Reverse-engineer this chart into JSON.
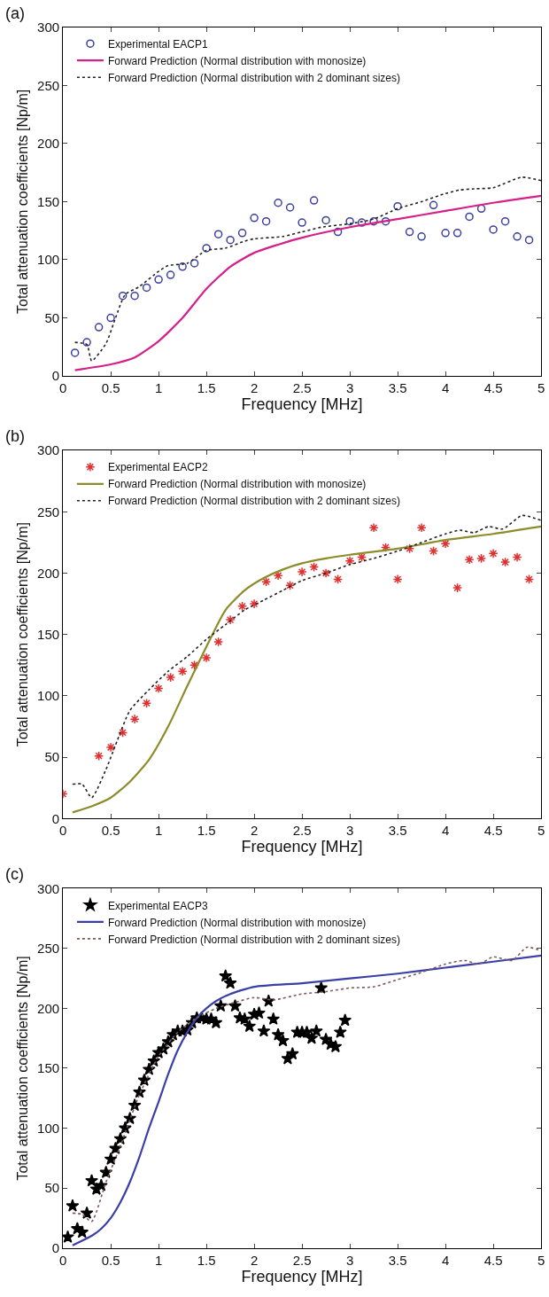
{
  "chart_data": [
    {
      "type": "scatter",
      "title": "(a)",
      "xlabel": "Frequency [MHz]",
      "ylabel": "Total attenuation coefficients [Np/m]",
      "xlim": [
        0,
        5
      ],
      "ylim": [
        0,
        300
      ],
      "xticks": [
        0,
        0.5,
        1,
        1.5,
        2,
        2.5,
        3,
        3.5,
        4,
        4.5,
        5
      ],
      "yticks": [
        0,
        50,
        100,
        150,
        200,
        250,
        300
      ],
      "legend": "top left",
      "series": [
        {
          "name": "Experimental EACP1",
          "marker": "circle",
          "color": "#3b3fa0",
          "x": [
            0.125,
            0.25,
            0.375,
            0.5,
            0.625,
            0.75,
            0.875,
            1,
            1.125,
            1.25,
            1.375,
            1.5,
            1.625,
            1.75,
            1.875,
            2,
            2.125,
            2.25,
            2.375,
            2.5,
            2.625,
            2.75,
            2.875,
            3,
            3.125,
            3.25,
            3.375,
            3.5,
            3.625,
            3.75,
            3.875,
            4,
            4.125,
            4.25,
            4.375,
            4.5,
            4.625,
            4.75,
            4.875
          ],
          "values": [
            20,
            29,
            42,
            50,
            69,
            69,
            76,
            83,
            87,
            94,
            97,
            110,
            122,
            117,
            123,
            136,
            133,
            149,
            145,
            132,
            151,
            134,
            124,
            133,
            132,
            133,
            133,
            146,
            124,
            120,
            147,
            123,
            123,
            137,
            144,
            126,
            133,
            120,
            117
          ]
        },
        {
          "name": "Forward Prediction (Normal distribution with monosize)",
          "type": "line",
          "line_style": "solid",
          "color": "#d4208a",
          "x": [
            0.125,
            0.5,
            0.75,
            1,
            1.25,
            1.5,
            1.75,
            2,
            2.25,
            2.5,
            3,
            3.5,
            4,
            4.5,
            5
          ],
          "values": [
            5,
            10,
            16,
            30,
            50,
            75,
            94,
            106,
            113,
            119,
            128,
            135,
            142,
            149,
            155
          ]
        },
        {
          "name": "Forward Prediction (Normal distribution with 2 dominant sizes)",
          "type": "line",
          "line_style": "dotted",
          "color": "#222222",
          "x": [
            0.125,
            0.25,
            0.3,
            0.45,
            0.55,
            0.65,
            0.8,
            1,
            1.1,
            1.3,
            1.5,
            1.7,
            1.9,
            2,
            2.3,
            2.5,
            2.7,
            3,
            3.25,
            3.5,
            3.75,
            4,
            4.15,
            4.3,
            4.5,
            4.8,
            5
          ],
          "values": [
            29,
            27,
            13,
            28,
            50,
            70,
            77,
            90,
            95,
            97,
            108,
            110,
            116,
            118,
            120,
            124,
            128,
            131,
            135,
            144,
            150,
            157,
            160,
            161,
            162,
            171,
            168
          ]
        }
      ]
    },
    {
      "type": "scatter",
      "title": "(b)",
      "xlabel": "Frequency [MHz]",
      "ylabel": "Total attenuation coefficients [Np/m]",
      "xlim": [
        0,
        5
      ],
      "ylim": [
        0,
        300
      ],
      "xticks": [
        0,
        0.5,
        1,
        1.5,
        2,
        2.5,
        3,
        3.5,
        4,
        4.5,
        5
      ],
      "yticks": [
        0,
        50,
        100,
        150,
        200,
        250,
        300
      ],
      "legend": "top left",
      "series": [
        {
          "name": "Experimental EACP2",
          "marker": "cross",
          "color": "#e03030",
          "x": [
            0,
            0.375,
            0.5,
            0.625,
            0.75,
            0.875,
            1,
            1.125,
            1.25,
            1.375,
            1.5,
            1.625,
            1.75,
            1.875,
            2,
            2.125,
            2.25,
            2.375,
            2.5,
            2.625,
            2.75,
            2.875,
            3,
            3.125,
            3.25,
            3.375,
            3.5,
            3.625,
            3.75,
            3.875,
            4,
            4.125,
            4.25,
            4.375,
            4.5,
            4.625,
            4.75,
            4.875
          ],
          "values": [
            20,
            51,
            58,
            70,
            81,
            94,
            106,
            115,
            120,
            125,
            131,
            144,
            162,
            173,
            175,
            193,
            198,
            190,
            201,
            205,
            200,
            195,
            210,
            213,
            237,
            221,
            195,
            220,
            237,
            218,
            224,
            188,
            211,
            212,
            216,
            209,
            213,
            195
          ]
        },
        {
          "name": "Forward Prediction (Normal distribution with monosize)",
          "type": "line",
          "line_style": "solid",
          "color": "#8c8c2a",
          "x": [
            0.1,
            0.3,
            0.5,
            0.7,
            0.9,
            1.1,
            1.3,
            1.5,
            1.7,
            1.9,
            2.1,
            2.3,
            2.5,
            2.75,
            3,
            3.5,
            4,
            4.5,
            5
          ],
          "values": [
            5,
            10,
            17,
            30,
            48,
            75,
            108,
            140,
            170,
            186,
            196,
            203,
            208,
            212,
            215,
            220,
            227,
            232,
            238
          ]
        },
        {
          "name": "Forward Prediction (Normal distribution with 2 dominant sizes)",
          "type": "line",
          "line_style": "dotted",
          "color": "#222222",
          "x": [
            0.1,
            0.2,
            0.3,
            0.45,
            0.55,
            0.7,
            0.9,
            1.1,
            1.3,
            1.5,
            1.7,
            1.9,
            2.1,
            2.3,
            2.5,
            2.75,
            3,
            3.25,
            3.5,
            3.75,
            4,
            4.15,
            4.3,
            4.45,
            4.6,
            4.8,
            5
          ],
          "values": [
            28,
            28,
            17,
            40,
            60,
            88,
            105,
            120,
            132,
            146,
            158,
            170,
            178,
            186,
            194,
            200,
            207,
            212,
            218,
            225,
            232,
            235,
            233,
            238,
            236,
            247,
            243
          ]
        }
      ]
    },
    {
      "type": "scatter",
      "title": "(c)",
      "xlabel": "Frequency [MHz]",
      "ylabel": "Total attenuation coefficients [Np/m]",
      "xlim": [
        0,
        5
      ],
      "ylim": [
        0,
        300
      ],
      "xticks": [
        0,
        0.5,
        1,
        1.5,
        2,
        2.5,
        3,
        3.5,
        4,
        4.5,
        5
      ],
      "yticks": [
        0,
        50,
        100,
        150,
        200,
        250,
        300
      ],
      "legend": "top left",
      "series": [
        {
          "name": "Experimental EACP3",
          "marker": "star",
          "color": "#000000",
          "x": [
            0.05,
            0.1,
            0.15,
            0.2,
            0.25,
            0.3,
            0.35,
            0.4,
            0.45,
            0.5,
            0.55,
            0.6,
            0.65,
            0.7,
            0.75,
            0.8,
            0.85,
            0.9,
            0.95,
            1.0,
            1.05,
            1.1,
            1.15,
            1.2,
            1.25,
            1.3,
            1.35,
            1.4,
            1.45,
            1.5,
            1.55,
            1.6,
            1.65,
            1.7,
            1.75,
            1.8,
            1.85,
            1.9,
            1.95,
            2.0,
            2.05,
            2.1,
            2.15,
            2.2,
            2.25,
            2.3,
            2.35,
            2.4,
            2.45,
            2.5,
            2.55,
            2.6,
            2.65,
            2.7,
            2.75,
            2.8,
            2.85,
            2.9,
            2.95
          ],
          "values": [
            9,
            35,
            16,
            13,
            29,
            56,
            49,
            52,
            63,
            74,
            83,
            91,
            100,
            108,
            119,
            130,
            140,
            149,
            156,
            163,
            166,
            172,
            178,
            181,
            181,
            182,
            188,
            192,
            192,
            191,
            191,
            188,
            202,
            227,
            221,
            202,
            192,
            191,
            185,
            195,
            196,
            181,
            206,
            191,
            178,
            173,
            158,
            162,
            180,
            180,
            180,
            175,
            181,
            217,
            174,
            170,
            168,
            180,
            190
          ]
        },
        {
          "name": "Forward Prediction (Normal distribution with monosize)",
          "type": "line",
          "line_style": "solid",
          "color": "#3a3fa8",
          "x": [
            0.1,
            0.2,
            0.3,
            0.4,
            0.5,
            0.6,
            0.7,
            0.8,
            0.9,
            1.0,
            1.1,
            1.2,
            1.3,
            1.4,
            1.5,
            1.6,
            1.75,
            2,
            2.5,
            3,
            3.5,
            4,
            4.5,
            5
          ],
          "values": [
            2,
            6,
            10,
            16,
            25,
            38,
            55,
            76,
            100,
            122,
            145,
            165,
            180,
            192,
            200,
            206,
            212,
            218,
            221,
            225,
            229,
            234,
            239,
            244
          ]
        },
        {
          "name": "Forward Prediction (Normal distribution with 2 dominant sizes)",
          "type": "line",
          "line_style": "dotted",
          "color": "#7a5a5a",
          "x": [
            0.1,
            0.2,
            0.3,
            0.45,
            0.6,
            0.8,
            1,
            1.2,
            1.4,
            1.6,
            1.8,
            2,
            2.2,
            2.5,
            2.75,
            3,
            3.25,
            3.5,
            3.75,
            4,
            4.2,
            4.35,
            4.5,
            4.7,
            4.85,
            5
          ],
          "values": [
            29,
            28,
            22,
            55,
            85,
            128,
            160,
            180,
            192,
            200,
            205,
            209,
            207,
            212,
            214,
            217,
            218,
            224,
            230,
            237,
            240,
            237,
            243,
            240,
            251,
            248
          ]
        }
      ]
    }
  ]
}
